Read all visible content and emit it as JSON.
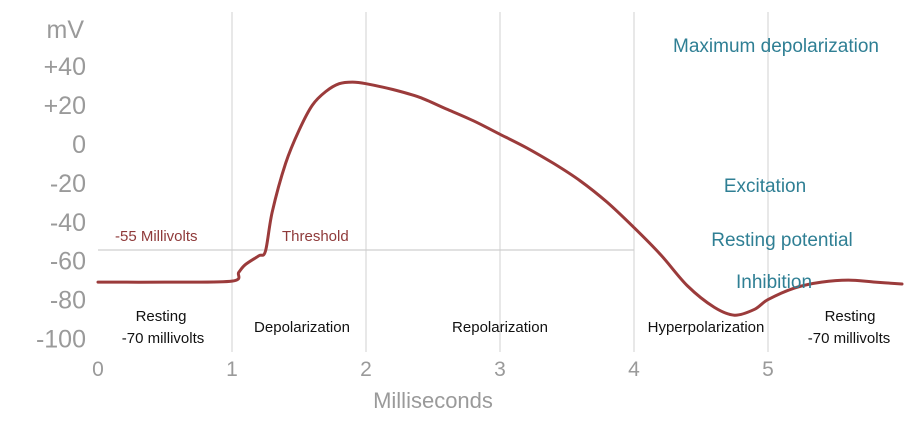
{
  "chart_data": {
    "type": "line",
    "title": "",
    "xlabel": "Milliseconds",
    "ylabel": "mV",
    "xlim": [
      0,
      6
    ],
    "ylim": [
      -100,
      40
    ],
    "x_ticks": [
      "0",
      "1",
      "2",
      "3",
      "4",
      "5"
    ],
    "y_ticks": [
      "+40",
      "+20",
      "0",
      "-20",
      "-40",
      "-60",
      "-80",
      "-100"
    ],
    "grid": "vertical lines at 1, 2, 3, 4, 5 ms",
    "series": [
      {
        "color": "#9b3b3b",
        "x": [
          0,
          0.5,
          1.0,
          1.05,
          1.1,
          1.2,
          1.25,
          1.3,
          1.4,
          1.5,
          1.6,
          1.7,
          1.8,
          1.9,
          2.0,
          2.2,
          2.4,
          2.6,
          2.8,
          3.0,
          3.2,
          3.4,
          3.6,
          3.8,
          4.0,
          4.2,
          4.4,
          4.6,
          4.75,
          4.9,
          5.0,
          5.2,
          5.4,
          5.6,
          5.8,
          6.0
        ],
        "y": [
          -71,
          -71,
          -70.5,
          -66,
          -62,
          -57.5,
          -55,
          -35,
          -10,
          7,
          20,
          27,
          31,
          31.8,
          31,
          28,
          24,
          18,
          12,
          5,
          -2,
          -10,
          -19,
          -30,
          -43,
          -57,
          -73,
          -84,
          -88,
          -85,
          -80,
          -74,
          -71,
          -70,
          -71,
          -72
        ]
      }
    ],
    "threshold": {
      "y": -55,
      "label": "-55 Millivolts",
      "x_range": [
        0,
        4
      ]
    }
  },
  "annotations": {
    "threshold_value": "-55 Millivolts",
    "threshold_label": "Threshold",
    "resting_left_line1": "Resting",
    "resting_left_line2": "-70 millivolts",
    "depolarization": "Depolarization",
    "repolarization": "Repolarization",
    "hyperpolarization": "Hyperpolarization",
    "resting_right_line1": "Resting",
    "resting_right_line2": "-70 millivolts",
    "maximum_depolarization": "Maximum depolarization",
    "excitation": "Excitation",
    "resting_potential": "Resting potential",
    "inhibition": "Inhibition"
  },
  "colors": {
    "curve": "#9b3b3b",
    "axis_text": "#9a9a9a",
    "grid": "#d0d0d0",
    "red_labels": "#8f3a3a",
    "blue_labels": "#2f7f94"
  }
}
